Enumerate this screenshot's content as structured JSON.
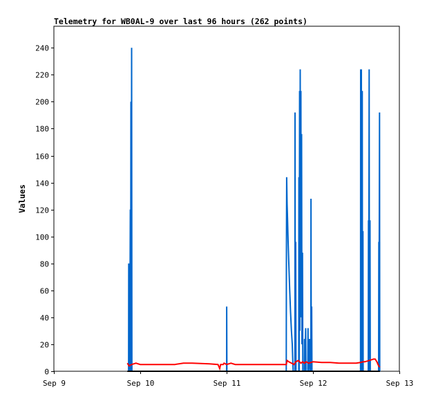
{
  "chart_data": {
    "type": "line",
    "title": "Telemetry for WB0AL-9 over last 96 hours (262 points)",
    "ylabel": "Values",
    "xlabel": "",
    "ylim": [
      0,
      256
    ],
    "xlim": [
      0,
      4
    ],
    "x_ticks": [
      {
        "pos": 0,
        "label": "Sep 9"
      },
      {
        "pos": 1,
        "label": "Sep 10"
      },
      {
        "pos": 2,
        "label": "Sep 11"
      },
      {
        "pos": 3,
        "label": "Sep 12"
      },
      {
        "pos": 4,
        "label": "Sep 13"
      }
    ],
    "y_ticks": [
      0,
      20,
      40,
      60,
      80,
      100,
      120,
      140,
      160,
      180,
      200,
      220,
      240
    ],
    "grid": false,
    "series": [
      {
        "color": "#0066cc",
        "points": [
          [
            0.865,
            0
          ],
          [
            0.866,
            80
          ],
          [
            0.868,
            0
          ],
          [
            0.875,
            48
          ],
          [
            0.878,
            0
          ],
          [
            0.885,
            120
          ],
          [
            0.888,
            0
          ],
          [
            0.892,
            200
          ],
          [
            0.895,
            0
          ],
          [
            0.9,
            240
          ],
          [
            0.903,
            0
          ],
          [
            2.0,
            0
          ],
          [
            2.001,
            48
          ],
          [
            2.003,
            0
          ],
          [
            2.69,
            0
          ],
          [
            2.692,
            80
          ],
          [
            2.695,
            144
          ],
          [
            2.7,
            124
          ],
          [
            2.705,
            114
          ],
          [
            2.712,
            96
          ],
          [
            2.72,
            80
          ],
          [
            2.73,
            60
          ],
          [
            2.74,
            44
          ],
          [
            2.75,
            30
          ],
          [
            2.76,
            20
          ],
          [
            2.765,
            10
          ],
          [
            2.77,
            0
          ],
          [
            2.79,
            0
          ],
          [
            2.792,
            192
          ],
          [
            2.795,
            0
          ],
          [
            2.8,
            96
          ],
          [
            2.803,
            0
          ],
          [
            2.835,
            0
          ],
          [
            2.837,
            144
          ],
          [
            2.84,
            0
          ],
          [
            2.845,
            208
          ],
          [
            2.848,
            30
          ],
          [
            2.852,
            224
          ],
          [
            2.855,
            52
          ],
          [
            2.86,
            208
          ],
          [
            2.863,
            40
          ],
          [
            2.868,
            176
          ],
          [
            2.872,
            20
          ],
          [
            2.878,
            88
          ],
          [
            2.882,
            0
          ],
          [
            2.9,
            0
          ],
          [
            2.902,
            24
          ],
          [
            2.905,
            0
          ],
          [
            2.915,
            32
          ],
          [
            2.918,
            0
          ],
          [
            2.94,
            0
          ],
          [
            2.942,
            32
          ],
          [
            2.945,
            0
          ],
          [
            2.96,
            24
          ],
          [
            2.963,
            0
          ],
          [
            2.975,
            0
          ],
          [
            2.977,
            128
          ],
          [
            2.98,
            0
          ],
          [
            2.985,
            48
          ],
          [
            2.988,
            0
          ],
          [
            3.55,
            0
          ],
          [
            3.552,
            224
          ],
          [
            3.555,
            0
          ],
          [
            3.56,
            224
          ],
          [
            3.563,
            0
          ],
          [
            3.57,
            208
          ],
          [
            3.573,
            0
          ],
          [
            3.578,
            104
          ],
          [
            3.581,
            0
          ],
          [
            3.64,
            0
          ],
          [
            3.642,
            112
          ],
          [
            3.645,
            0
          ],
          [
            3.65,
            224
          ],
          [
            3.653,
            0
          ],
          [
            3.66,
            112
          ],
          [
            3.663,
            0
          ],
          [
            3.76,
            0
          ],
          [
            3.762,
            96
          ],
          [
            3.764,
            0
          ],
          [
            3.77,
            192
          ],
          [
            3.773,
            0
          ]
        ]
      },
      {
        "color": "#ff0000",
        "points": [
          [
            0.85,
            6
          ],
          [
            0.87,
            4
          ],
          [
            0.9,
            5
          ],
          [
            0.95,
            6
          ],
          [
            1.0,
            5
          ],
          [
            1.2,
            5
          ],
          [
            1.4,
            5
          ],
          [
            1.5,
            6
          ],
          [
            1.6,
            6
          ],
          [
            1.8,
            5.5
          ],
          [
            1.9,
            5
          ],
          [
            1.92,
            2
          ],
          [
            1.93,
            5
          ],
          [
            1.96,
            5
          ],
          [
            1.97,
            6
          ],
          [
            2.0,
            5
          ],
          [
            2.05,
            6
          ],
          [
            2.1,
            5
          ],
          [
            2.4,
            5
          ],
          [
            2.69,
            5
          ],
          [
            2.7,
            8
          ],
          [
            2.72,
            7
          ],
          [
            2.75,
            6
          ],
          [
            2.78,
            5
          ],
          [
            2.8,
            7
          ],
          [
            2.83,
            8
          ],
          [
            2.86,
            6
          ],
          [
            2.88,
            7
          ],
          [
            2.9,
            6
          ],
          [
            2.92,
            7
          ],
          [
            2.95,
            6
          ],
          [
            3.0,
            7
          ],
          [
            3.1,
            6.5
          ],
          [
            3.2,
            6.5
          ],
          [
            3.3,
            6
          ],
          [
            3.5,
            6
          ],
          [
            3.55,
            6.5
          ],
          [
            3.58,
            7
          ],
          [
            3.6,
            7
          ],
          [
            3.65,
            8
          ],
          [
            3.7,
            9
          ],
          [
            3.72,
            9
          ],
          [
            3.74,
            7
          ],
          [
            3.76,
            4
          ],
          [
            3.775,
            3
          ]
        ]
      },
      {
        "color": "#000000",
        "points": [
          [
            0.85,
            0
          ],
          [
            3.775,
            0
          ]
        ]
      }
    ]
  }
}
